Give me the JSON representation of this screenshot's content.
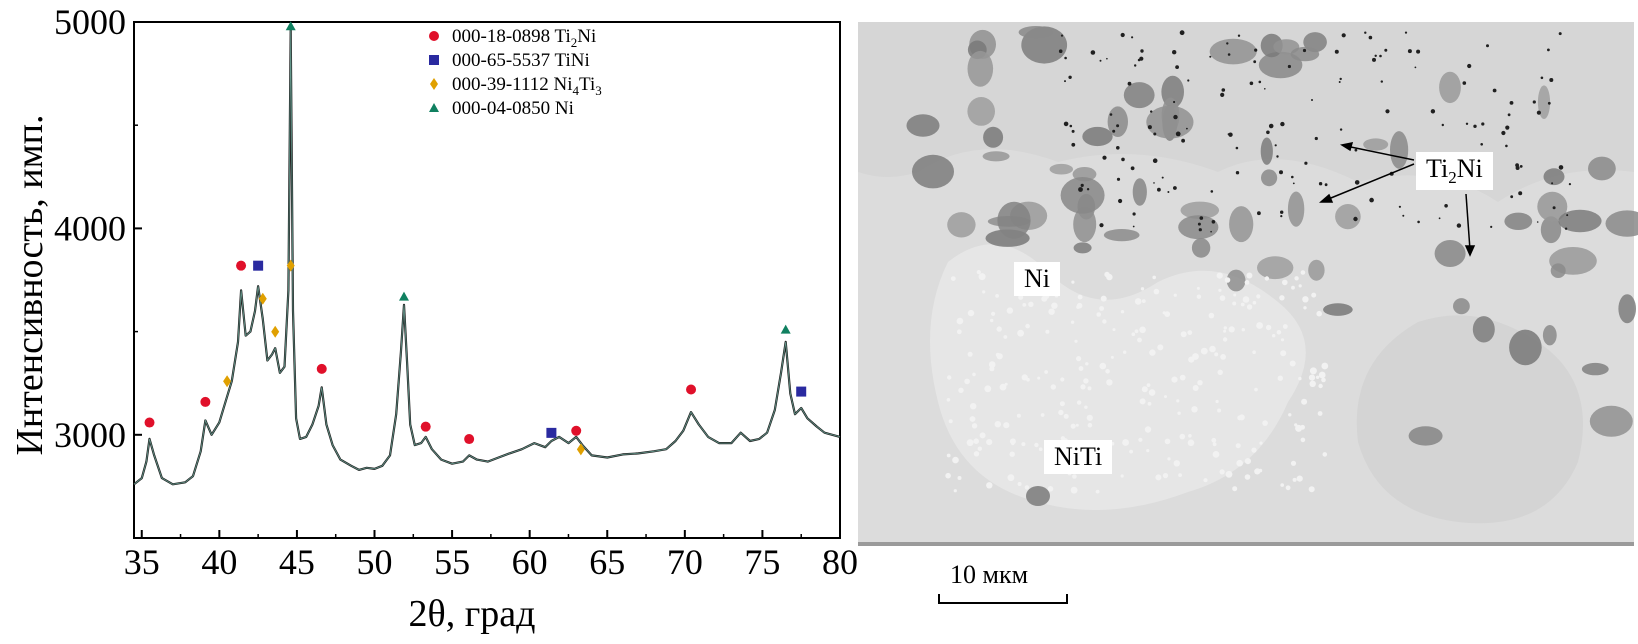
{
  "chart_data": {
    "type": "line",
    "title": "",
    "xlabel": "2θ, град",
    "ylabel": "Интенсивность, имп.",
    "xlim": [
      34.5,
      80
    ],
    "ylim": [
      2500,
      5000
    ],
    "x_ticks": [
      35,
      40,
      45,
      50,
      55,
      60,
      65,
      70,
      75,
      80
    ],
    "y_ticks": [
      3000,
      4000,
      5000
    ],
    "grid": false,
    "legend_position": "top-center",
    "series": [
      {
        "marker": "circle",
        "color": "#e0102a",
        "code": "000-18-0898",
        "phase": "Ti",
        "phase_sub": "2",
        "phase_tail": "Ni",
        "peaks": [
          [
            35.5,
            3040
          ],
          [
            39.1,
            3140
          ],
          [
            41.4,
            3800
          ],
          [
            46.6,
            3300
          ],
          [
            53.3,
            3020
          ],
          [
            56.1,
            2960
          ],
          [
            63.0,
            3000
          ],
          [
            70.4,
            3200
          ]
        ]
      },
      {
        "marker": "square",
        "color": "#2a2aa0",
        "code": "000-65-5537",
        "phase": "TiNi",
        "phase_sub": "",
        "phase_tail": "",
        "peaks": [
          [
            42.5,
            3800
          ],
          [
            61.4,
            2990
          ],
          [
            77.5,
            3190
          ]
        ]
      },
      {
        "marker": "diamond",
        "color": "#e0a000",
        "code": "000-39-1112",
        "phase": "Ni",
        "phase_sub": "4",
        "phase_tail": "Ti",
        "phase_sub2": "3",
        "peaks": [
          [
            40.5,
            3240
          ],
          [
            42.8,
            3640
          ],
          [
            43.6,
            3480
          ],
          [
            44.6,
            3800
          ],
          [
            63.3,
            2910
          ]
        ]
      },
      {
        "marker": "triangle",
        "color": "#108060",
        "code": "000-04-0850",
        "phase": "Ni",
        "phase_sub": "",
        "phase_tail": "",
        "peaks": [
          [
            44.6,
            4960
          ],
          [
            51.9,
            3650
          ],
          [
            76.5,
            3490
          ]
        ]
      }
    ],
    "pattern": {
      "x": [
        34.5,
        35.0,
        35.3,
        35.5,
        35.8,
        36.3,
        37.0,
        37.8,
        38.3,
        38.8,
        39.1,
        39.5,
        40.0,
        40.4,
        40.8,
        41.2,
        41.4,
        41.7,
        42.0,
        42.3,
        42.5,
        42.8,
        43.1,
        43.4,
        43.6,
        43.9,
        44.2,
        44.45,
        44.6,
        44.75,
        44.95,
        45.2,
        45.6,
        46.0,
        46.4,
        46.6,
        46.9,
        47.3,
        47.8,
        48.5,
        49.0,
        49.5,
        50.0,
        50.5,
        51.0,
        51.4,
        51.7,
        51.9,
        52.1,
        52.3,
        52.6,
        53.0,
        53.3,
        53.7,
        54.3,
        55.0,
        55.7,
        56.1,
        56.6,
        57.3,
        58.0,
        58.7,
        59.5,
        60.3,
        61.0,
        61.4,
        61.9,
        62.5,
        63.0,
        63.4,
        64.0,
        65.0,
        66.0,
        67.0,
        68.0,
        68.8,
        69.4,
        69.9,
        70.4,
        70.9,
        71.5,
        72.2,
        73.0,
        73.6,
        74.2,
        74.8,
        75.3,
        75.8,
        76.2,
        76.5,
        76.8,
        77.1,
        77.5,
        77.9,
        78.5,
        79.0,
        79.5,
        80.0
      ],
      "y": [
        2760,
        2790,
        2870,
        2980,
        2900,
        2790,
        2760,
        2770,
        2800,
        2920,
        3070,
        3000,
        3060,
        3160,
        3260,
        3450,
        3700,
        3480,
        3500,
        3600,
        3720,
        3560,
        3360,
        3390,
        3420,
        3300,
        3330,
        3700,
        4960,
        3600,
        3080,
        2980,
        2990,
        3050,
        3140,
        3230,
        3050,
        2950,
        2880,
        2850,
        2830,
        2840,
        2835,
        2850,
        2900,
        3100,
        3400,
        3630,
        3350,
        3050,
        2950,
        2960,
        2990,
        2930,
        2880,
        2860,
        2870,
        2900,
        2880,
        2870,
        2890,
        2910,
        2930,
        2960,
        2940,
        2970,
        2990,
        2960,
        2990,
        2950,
        2900,
        2890,
        2905,
        2910,
        2920,
        2930,
        2970,
        3020,
        3110,
        3050,
        2990,
        2960,
        2960,
        3010,
        2970,
        2980,
        3010,
        3120,
        3300,
        3450,
        3200,
        3100,
        3130,
        3080,
        3040,
        3010,
        3000,
        2990
      ]
    }
  },
  "micrograph": {
    "labels": {
      "ni": "Ni",
      "niti": "NiTi",
      "ti2ni_main": "Ti",
      "ti2ni_sub": "2",
      "ti2ni_tail": "Ni"
    },
    "scale_bar_label": "10 мкм"
  }
}
